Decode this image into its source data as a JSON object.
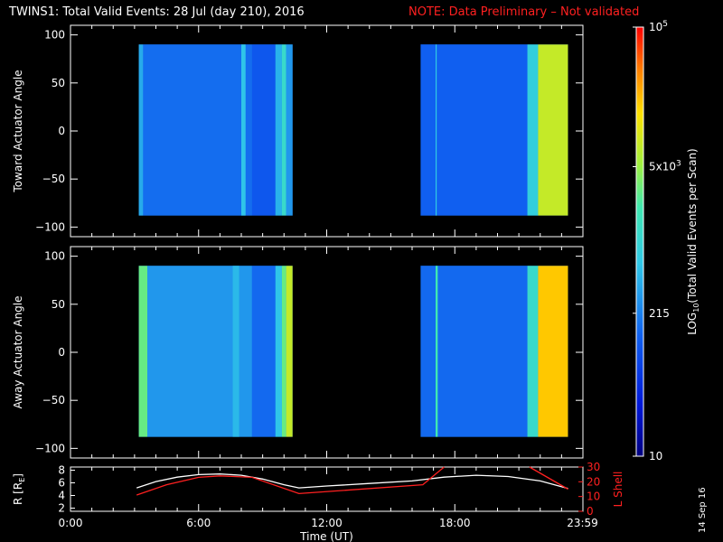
{
  "title": "TWINS1: Total Valid Events: 28 Jul (day 210), 2016",
  "note": "NOTE: Data Preliminary – Not validated",
  "stamp": "14 Sep 16",
  "colors": {
    "background": "#000000",
    "axes": "#ffffff",
    "note": "#ff2020",
    "lshell_line": "#ff2020",
    "r_line": "#ffffff"
  },
  "chart_data": [
    {
      "type": "heatmap",
      "name": "toward",
      "ylabel": "Toward Actuator Angle",
      "ylim": [
        -110,
        110
      ],
      "yticks": [
        "100",
        "50",
        "0",
        "−50",
        "−100"
      ],
      "ytick_values": [
        100,
        50,
        0,
        -50,
        -100
      ],
      "xlim": [
        0,
        24
      ],
      "data_y_range": [
        -88,
        90
      ],
      "segments": [
        {
          "x_start": 3.2,
          "x_end": 10.4,
          "level": 215
        },
        {
          "x_start": 16.4,
          "x_end": 23.3,
          "level": 215
        }
      ],
      "bands": [
        {
          "x_start": 3.2,
          "x_end": 3.4,
          "level": 400
        },
        {
          "x_start": 3.4,
          "x_end": 8.5,
          "level": 160
        },
        {
          "x_start": 8.0,
          "x_end": 8.2,
          "level": 600
        },
        {
          "x_start": 8.5,
          "x_end": 9.6,
          "level": 110
        },
        {
          "x_start": 9.6,
          "x_end": 9.9,
          "level": 450
        },
        {
          "x_start": 9.9,
          "x_end": 10.1,
          "level": 1200
        },
        {
          "x_start": 10.1,
          "x_end": 10.4,
          "level": 300
        },
        {
          "x_start": 16.4,
          "x_end": 21.4,
          "level": 130
        },
        {
          "x_start": 17.1,
          "x_end": 17.15,
          "level": 700
        },
        {
          "x_start": 21.4,
          "x_end": 21.9,
          "level": 800
        },
        {
          "x_start": 21.9,
          "x_end": 23.3,
          "level": 8000
        }
      ]
    },
    {
      "type": "heatmap",
      "name": "away",
      "ylabel": "Away Actuator Angle",
      "ylim": [
        -110,
        110
      ],
      "yticks": [
        "100",
        "50",
        "0",
        "−50",
        "−100"
      ],
      "ytick_values": [
        100,
        50,
        0,
        -50,
        -100
      ],
      "xlim": [
        0,
        24
      ],
      "data_y_range": [
        -88,
        90
      ],
      "segments": [
        {
          "x_start": 3.2,
          "x_end": 10.4,
          "level": 215
        },
        {
          "x_start": 16.4,
          "x_end": 23.3,
          "level": 215
        }
      ],
      "bands": [
        {
          "x_start": 3.2,
          "x_end": 3.6,
          "level": 3000
        },
        {
          "x_start": 3.6,
          "x_end": 8.5,
          "level": 300
        },
        {
          "x_start": 7.6,
          "x_end": 7.9,
          "level": 500
        },
        {
          "x_start": 8.5,
          "x_end": 9.6,
          "level": 150
        },
        {
          "x_start": 9.6,
          "x_end": 9.9,
          "level": 600
        },
        {
          "x_start": 9.9,
          "x_end": 10.1,
          "level": 3000
        },
        {
          "x_start": 10.1,
          "x_end": 10.4,
          "level": 8000
        },
        {
          "x_start": 16.4,
          "x_end": 21.4,
          "level": 150
        },
        {
          "x_start": 17.1,
          "x_end": 17.2,
          "level": 2000
        },
        {
          "x_start": 21.4,
          "x_end": 21.9,
          "level": 1200
        },
        {
          "x_start": 21.9,
          "x_end": 23.3,
          "level": 20000
        }
      ]
    },
    {
      "type": "line",
      "name": "orbit",
      "ylabel": "R [R",
      "ylabel_sub": "E",
      "ylabel_close": "]",
      "ylabel2": "L Shell",
      "ylim": [
        1.5,
        8.5
      ],
      "yticks": [
        "8",
        "6",
        "4",
        "2"
      ],
      "ytick_values": [
        8,
        6,
        4,
        2
      ],
      "y2lim": [
        0,
        30
      ],
      "y2ticks": [
        "30",
        "20",
        "10",
        "0"
      ],
      "y2tick_values": [
        30,
        20,
        10,
        0
      ],
      "xlim": [
        0,
        24
      ],
      "xlabel": "Time (UT)",
      "xticks": [
        "0:00",
        "6:00",
        "12:00",
        "18:00",
        "23:59"
      ],
      "xtick_values": [
        0,
        6,
        12,
        18,
        23.98
      ],
      "series": [
        {
          "axis": "left",
          "x": [
            3.1,
            4.0,
            5.0,
            6.0,
            7.0,
            8.0,
            9.0,
            10.0,
            10.7,
            12.0,
            14.0,
            16.0,
            17.5,
            19.0,
            20.5,
            22.0,
            23.3
          ],
          "y": [
            5.2,
            6.2,
            6.9,
            7.3,
            7.4,
            7.2,
            6.6,
            5.7,
            5.2,
            5.5,
            5.9,
            6.3,
            6.9,
            7.2,
            7.0,
            6.3,
            5.1
          ]
        },
        {
          "axis": "right",
          "x": [
            3.1,
            4.5,
            6.0,
            7.0,
            8.5,
            10.7,
            16.5,
            17.5
          ],
          "y": [
            11,
            18,
            23,
            24,
            23,
            12,
            18,
            30
          ]
        },
        {
          "axis": "right",
          "x": [
            21.5,
            23.3
          ],
          "y": [
            30,
            15
          ]
        }
      ]
    }
  ],
  "colorbar": {
    "label_prefix": "LOG",
    "label_sub": "10",
    "label_suffix": "(Total Valid Events per Scan)",
    "min": 10,
    "max": 100000,
    "tick_labels": [
      {
        "value": 100000,
        "base": "10",
        "exp": "5"
      },
      {
        "value": 5000,
        "base": "5x10",
        "exp": "3"
      },
      {
        "value": 215,
        "base": "215",
        "exp": ""
      },
      {
        "value": 10,
        "base": "10",
        "exp": ""
      }
    ]
  }
}
